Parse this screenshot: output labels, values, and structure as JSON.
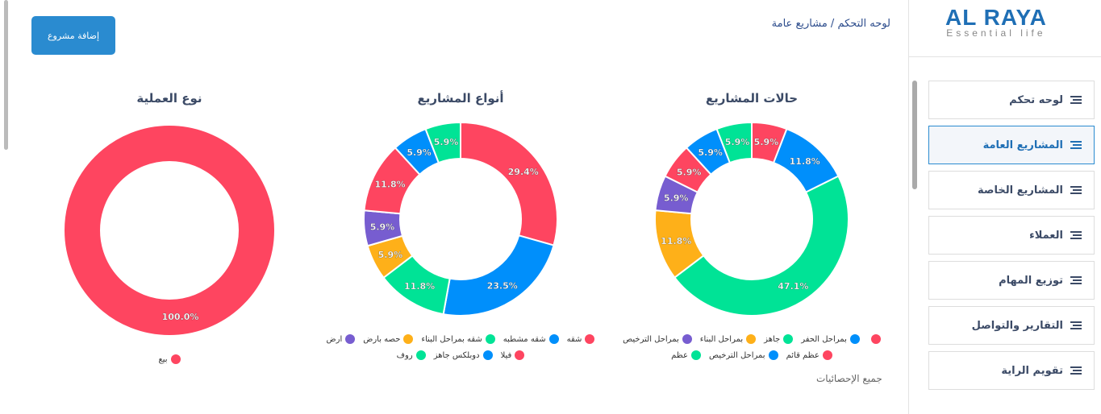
{
  "logo": {
    "name": "AL RAYA",
    "tagline": "Essential life"
  },
  "breadcrumb": {
    "home": "لوحه التحكم",
    "separator": "/",
    "current": "مشاريع عامة"
  },
  "button": "إضافة مشروع",
  "sidebar": [
    "لوحه تحكم",
    "المشاريع العامة",
    "المشاريع الخاصة",
    "العملاء",
    "توزيع المهام",
    "التقارير والتواصل",
    "تقويم الراية"
  ],
  "all_stats_link": "جميع الإحصائيات",
  "chart_data": [
    {
      "type": "donut",
      "title": "حالات المشاريع",
      "categories": [
        null,
        "بمراحل الحفر",
        "جاهز",
        "بمراحل البناء",
        "بمراحل الترخيص",
        "عظم قائم",
        "بمراحل الترخيص",
        "عظم"
      ],
      "values": [
        5.9,
        11.8,
        47.1,
        11.8,
        5.9,
        5.9,
        5.9,
        5.9
      ],
      "value_labels": [
        "5.9%",
        "11.8%",
        "47.1%",
        "11.8%",
        "5.9%",
        "5.9%",
        "5.9%",
        "5.9%"
      ],
      "colors": [
        "#fe4560",
        "#008ffb",
        "#00e396",
        "#feb019",
        "#775dd0",
        "#fe4560",
        "#008ffb",
        "#00e396"
      ]
    },
    {
      "type": "donut",
      "title": "أنواع المشاريع",
      "categories": [
        "شقه",
        "شقه مشطبه",
        "شقه بمراحل البناء",
        "حصه بارض",
        "ارض",
        "فيلا",
        "دوبلكس جاهز",
        "روف"
      ],
      "values": [
        29.4,
        23.5,
        11.8,
        5.9,
        5.9,
        11.8,
        5.9,
        5.9
      ],
      "value_labels": [
        "29.4%",
        "23.5%",
        "11.8%",
        "5.9%",
        "5.9%",
        "11.8%",
        "5.9%",
        "5.9%"
      ],
      "colors": [
        "#fe4560",
        "#008ffb",
        "#00e396",
        "#feb019",
        "#775dd0",
        "#fe4560",
        "#008ffb",
        "#00e396"
      ]
    },
    {
      "type": "donut",
      "title": "نوع العملية",
      "categories": [
        "بيع"
      ],
      "values": [
        100
      ],
      "value_labels": [
        "100.0%"
      ],
      "colors": [
        "#fe4560"
      ]
    }
  ]
}
